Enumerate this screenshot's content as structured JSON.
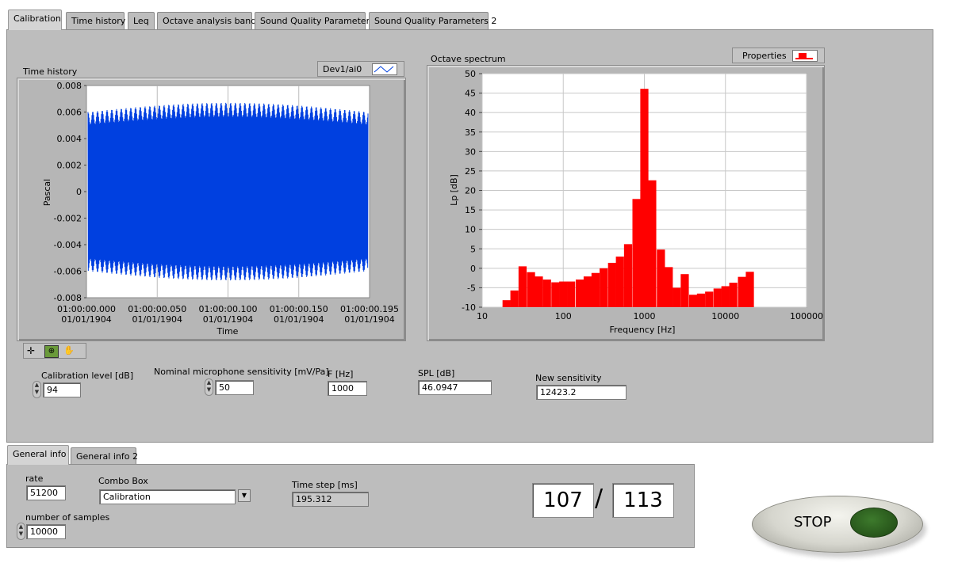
{
  "top_tabs": [
    "Calibration",
    "Time history",
    "Leq",
    "Octave analysis band",
    "Sound Quality Parameters",
    "Sound Quality Parameters 2"
  ],
  "time_history": {
    "label": "Time history",
    "legend": "Dev1/ai0",
    "ylabel": "Pascal",
    "xlabel": "Time",
    "yticks": [
      "0.008",
      "0.006",
      "0.004",
      "0.002",
      "0",
      "-0.002",
      "-0.004",
      "-0.006",
      "-0.008"
    ],
    "xticks": [
      {
        "time": "01:00:00.000",
        "date": "01/01/1904"
      },
      {
        "time": "01:00:00.050",
        "date": "01/01/1904"
      },
      {
        "time": "01:00:00.100",
        "date": "01/01/1904"
      },
      {
        "time": "01:00:00.150",
        "date": "01/01/1904"
      },
      {
        "time": "01:00:00.195",
        "date": "01/01/1904"
      }
    ],
    "color": "#0040e0"
  },
  "octave": {
    "label": "Octave spectrum",
    "legend": "Properties",
    "ylabel": "Lp [dB]",
    "xlabel": "Frequency [Hz]",
    "yticks": [
      "50",
      "45",
      "40",
      "35",
      "30",
      "25",
      "20",
      "15",
      "10",
      "5",
      "0",
      "-5",
      "-10"
    ],
    "xticks": [
      "10",
      "100",
      "1000",
      "10000",
      "100000"
    ],
    "color": "#ff0000"
  },
  "chart_data": {
    "type": "bar",
    "title": "",
    "xlabel": "Frequency [Hz]",
    "ylabel": "Lp [dB]",
    "xscale": "log",
    "xlim": [
      10,
      100000
    ],
    "ylim": [
      -10,
      50
    ],
    "x": [
      20,
      25,
      31.5,
      40,
      50,
      63,
      80,
      100,
      125,
      160,
      200,
      250,
      315,
      400,
      500,
      630,
      800,
      1000,
      1250,
      1600,
      2000,
      2500,
      3150,
      4000,
      5000,
      6300,
      8000,
      10000,
      12500,
      16000,
      20000
    ],
    "values": [
      -8.2,
      -5.7,
      0.5,
      -1,
      -2.1,
      -2.9,
      -3.6,
      -3.4,
      -3.4,
      -2.9,
      -2.1,
      -1.2,
      0,
      1.4,
      3,
      6.2,
      17.8,
      46.1,
      22.6,
      4.8,
      0.3,
      -5,
      -1.5,
      -6.8,
      -6.5,
      -6,
      -5.2,
      -4.6,
      -3.7,
      -2.2,
      -0.9
    ]
  },
  "calibration": {
    "level_label": "Calibration level [dB]",
    "level_value": "94",
    "sens_label": "Nominal microphone sensitivity [mV/Pa]",
    "sens_value": "50",
    "f_label": "F [Hz]",
    "f_value": "1000",
    "spl_label": "SPL [dB]",
    "spl_value": "46.0947",
    "newsens_label": "New sensitivity",
    "newsens_value": "12423.2"
  },
  "bottom_tabs": [
    "General info",
    "General info 2"
  ],
  "general": {
    "rate_label": "rate",
    "rate_value": "51200",
    "combo_label": "Combo Box",
    "combo_value": "Calibration",
    "timestep_label": "Time step [ms]",
    "timestep_value": "195.312",
    "samples_label": "number of samples",
    "samples_value": "10000"
  },
  "progress": {
    "current": "107",
    "slash": "/",
    "total": "113"
  },
  "stop_label": "STOP"
}
